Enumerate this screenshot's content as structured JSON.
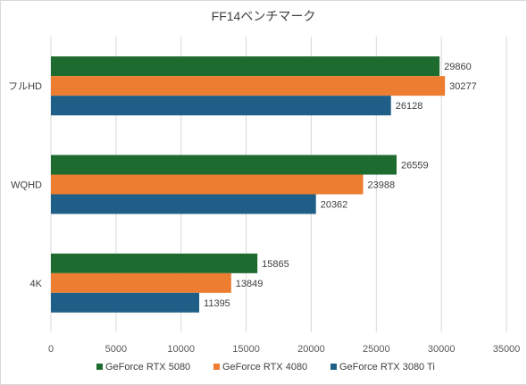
{
  "chart_data": {
    "type": "bar",
    "orientation": "horizontal",
    "title": "FF14ベンチマーク",
    "xlabel": "",
    "ylabel": "",
    "categories": [
      "フルHD",
      "WQHD",
      "4K"
    ],
    "series": [
      {
        "name": "GeForce RTX 5080",
        "color": "#1e6b2f",
        "values": [
          29860,
          26559,
          15865
        ]
      },
      {
        "name": "GeForce RTX 4080",
        "color": "#ed7d31",
        "values": [
          30277,
          23988,
          13849
        ]
      },
      {
        "name": "GeForce RTX 3080 Ti",
        "color": "#1f5f87",
        "values": [
          26128,
          20362,
          11395
        ]
      }
    ],
    "xlim": [
      0,
      35000
    ],
    "xticks": [
      0,
      5000,
      10000,
      15000,
      20000,
      25000,
      30000,
      35000
    ],
    "grid": "vertical",
    "legend_position": "bottom",
    "data_labels": true
  }
}
